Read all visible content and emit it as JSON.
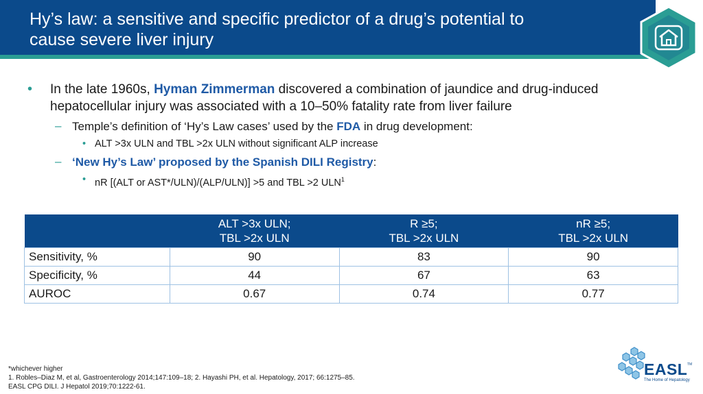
{
  "header": {
    "title_line1": "Hy’s law: a sensitive and specific predictor of a drug’s potential to",
    "title_line2": "cause severe liver injury",
    "home_icon": "home-icon"
  },
  "bullets": {
    "b1_pre": "In the late 1960s, ",
    "b1_name": "Hyman Zimmerman",
    "b1_post": " discovered a combination of jaundice and drug-induced hepatocellular injury was associated with a 10–50% fatality rate from liver failure",
    "b2a_pre": "Temple’s definition of ‘Hy’s Law cases’ used by the ",
    "b2a_hl": "FDA",
    "b2a_post": " in drug development:",
    "b3a": "ALT >3x ULN and TBL >2x ULN without significant ALP increase",
    "b2b_hl": "‘New Hy’s Law’ proposed by the Spanish DILI Registry",
    "b2b_post": ":",
    "b3b": "nR [(ALT or AST*/ULN)/(ALP/ULN)] >5 and TBL >2 ULN",
    "b3b_sup": "1",
    "dash": "–",
    "dot": "•"
  },
  "table": {
    "headers": [
      {
        "line1": "",
        "line2": ""
      },
      {
        "line1": "ALT >3x ULN;",
        "line2": "TBL >2x ULN"
      },
      {
        "line1": "R ≥5;",
        "line2": "TBL >2x ULN"
      },
      {
        "line1": "nR ≥5;",
        "line2": "TBL >2x ULN"
      }
    ],
    "rows": [
      {
        "label": "Sensitivity, %",
        "values": [
          "90",
          "83",
          "90"
        ]
      },
      {
        "label": "Specificity, %",
        "values": [
          "44",
          "67",
          "63"
        ]
      },
      {
        "label": "AUROC",
        "values": [
          "0.67",
          "0.74",
          "0.77"
        ]
      }
    ]
  },
  "footnotes": {
    "line1": "*whichever higher",
    "line2": "1. Robles–Diaz M, et al, Gastroenterology 2014;147:109–18; 2. Hayashi PH, et al. Hepatology, 2017; 66:1275–85.",
    "line3": "EASL CPG DILI. J Hepatol 2019;70:1222-61."
  },
  "logo": {
    "text": "EASL",
    "tm": "TM",
    "tagline": "The Home of Hepatology",
    "icon": "easl-molecule-icon"
  },
  "colors": {
    "header": "#0b4a8b",
    "accent_teal": "#2a9d94",
    "highlight_blue": "#1f5aa6",
    "table_border": "#9ec1e3"
  }
}
